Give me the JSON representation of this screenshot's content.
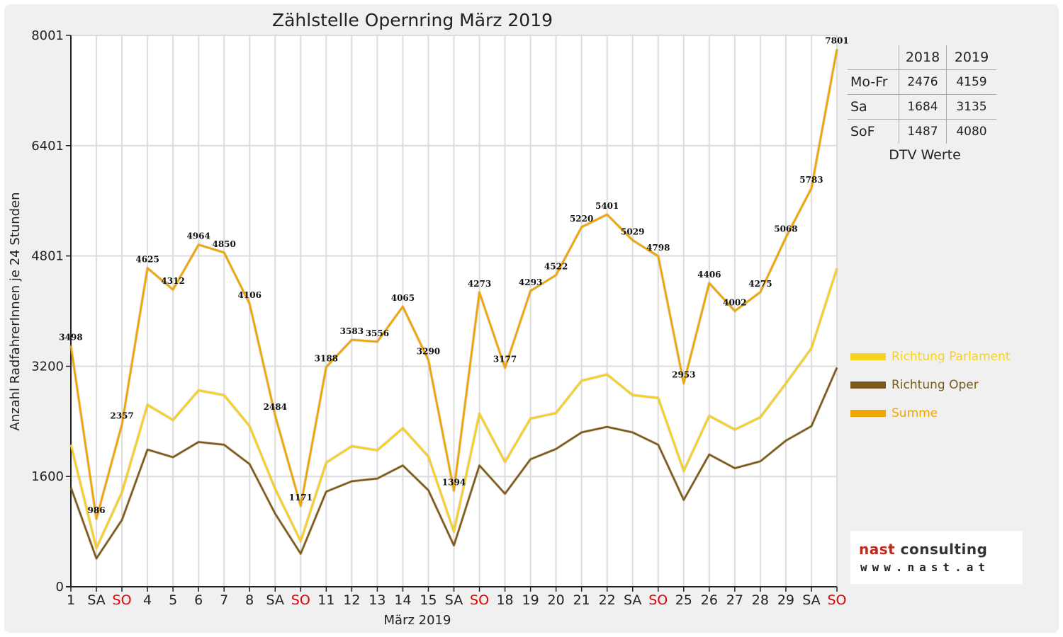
{
  "chart_data": {
    "type": "line",
    "title": "Zählstelle Opernring März 2019",
    "xlabel": "März 2019",
    "ylabel": "Anzahl RadfahrerInnen je 24 Stunden",
    "ylim": [
      0,
      8001
    ],
    "yticks": [
      "0",
      "1600",
      "3200",
      "4801",
      "6401",
      "8001"
    ],
    "categories": [
      "1",
      "SA",
      "SO",
      "4",
      "5",
      "6",
      "7",
      "8",
      "SA",
      "SO",
      "11",
      "12",
      "13",
      "14",
      "15",
      "SA",
      "SO",
      "18",
      "19",
      "20",
      "21",
      "22",
      "SA",
      "SO",
      "25",
      "26",
      "27",
      "28",
      "29",
      "SA",
      "SO"
    ],
    "red_categories": [
      2,
      9,
      16,
      23,
      30
    ],
    "grid": "vertical and horizontal",
    "legend_position": "right",
    "series": [
      {
        "name": "Richtung Parlament",
        "color": "#f7d21e",
        "values": [
          2060,
          560,
          1370,
          2640,
          2420,
          2850,
          2780,
          2330,
          1420,
          660,
          1800,
          2040,
          1980,
          2300,
          1890,
          800,
          2510,
          1810,
          2440,
          2520,
          2990,
          3080,
          2780,
          2740,
          1680,
          2480,
          2280,
          2460,
          2950,
          3460,
          4620
        ]
      },
      {
        "name": "Richtung Oper",
        "color": "#7a5a1e",
        "values": [
          1440,
          410,
          970,
          1990,
          1880,
          2100,
          2060,
          1780,
          1060,
          480,
          1380,
          1530,
          1570,
          1760,
          1400,
          600,
          1760,
          1350,
          1850,
          2000,
          2240,
          2320,
          2240,
          2060,
          1260,
          1920,
          1720,
          1820,
          2120,
          2330,
          3180
        ]
      },
      {
        "name": "Summe",
        "color": "#f0a500",
        "values": [
          3498,
          986,
          2357,
          4625,
          4312,
          4964,
          4850,
          4106,
          2484,
          1171,
          3188,
          3583,
          3556,
          4065,
          3290,
          1394,
          4273,
          3177,
          4293,
          4522,
          5220,
          5401,
          5029,
          4798,
          2953,
          4406,
          4002,
          4275,
          5068,
          5783,
          7801
        ],
        "labels": [
          "3498",
          "986",
          "2357",
          "4625",
          "4312",
          "4964",
          "4850",
          "4106",
          "2484",
          "1171",
          "3188",
          "3583",
          "3556",
          "4065",
          "3290",
          "1394",
          "4273",
          "3177",
          "4293",
          "4522",
          "5220",
          "5401",
          "5029",
          "4798",
          "2953",
          "4406",
          "4002",
          "4275",
          "5068",
          "5783",
          "7801"
        ]
      }
    ]
  },
  "dtv_table": {
    "columns": [
      "2018",
      "2019"
    ],
    "rows": [
      {
        "label": "Mo-Fr",
        "v2018": "2476",
        "v2019": "4159"
      },
      {
        "label": "Sa",
        "v2018": "1684",
        "v2019": "3135"
      },
      {
        "label": "SoF",
        "v2018": "1487",
        "v2019": "4080"
      }
    ],
    "caption": "DTV Werte"
  },
  "logo": {
    "name_part1": "nast",
    "name_part2": " consulting",
    "url": "www.nast.at",
    "color_red": "#c0281c",
    "color_dark": "#333333"
  }
}
